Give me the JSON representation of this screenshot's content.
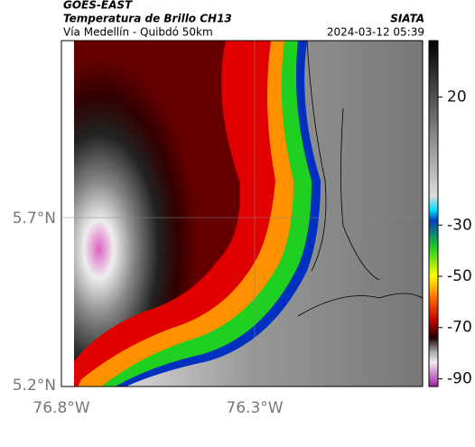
{
  "header": {
    "source": "GOES-EAST",
    "title": "Temperatura de Brillo CH13",
    "subtitle": "Vía Medellín - Quibdó 50km",
    "organization": "SIATA",
    "timestamp": "2024-03-12 05:39"
  },
  "map": {
    "lat_labels": [
      "5.7°N",
      "5.2°N"
    ],
    "lon_labels": [
      "76.8°W",
      "76.3°W"
    ]
  },
  "colorbar": {
    "lim": [
      -93,
      42
    ],
    "ticks": [
      20,
      -30,
      -50,
      -70,
      -90
    ]
  }
}
